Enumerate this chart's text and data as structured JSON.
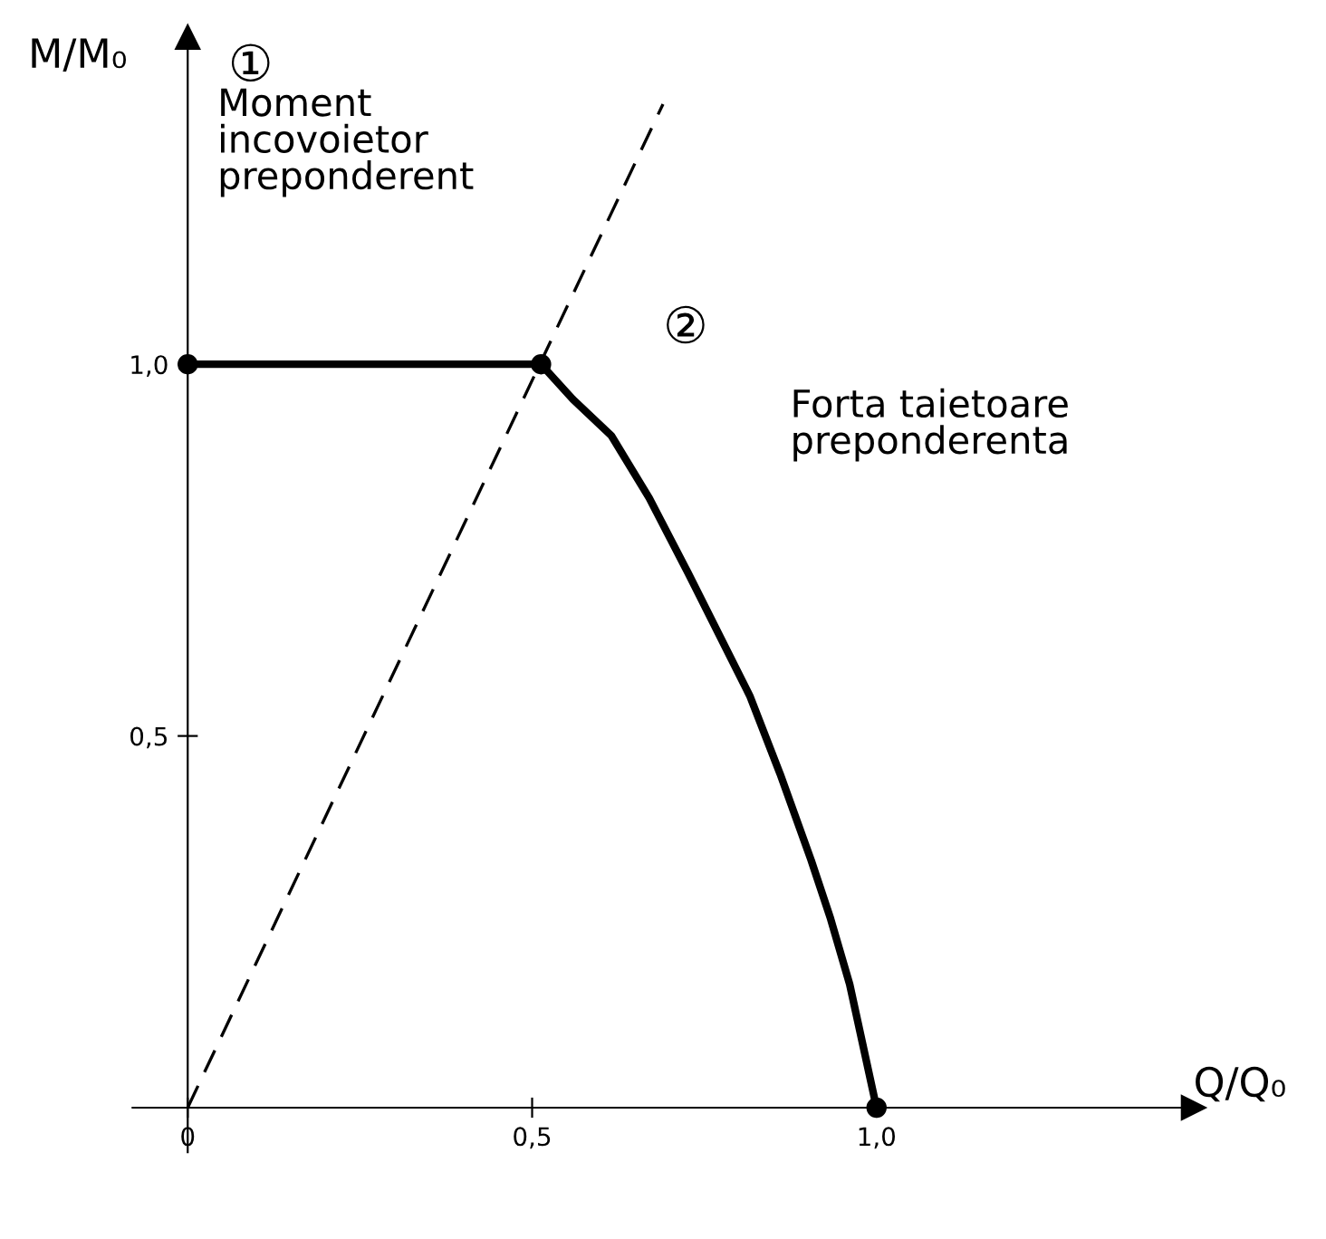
{
  "chart_data": {
    "type": "line",
    "xlabel": "Q/Q₀",
    "ylabel": "M/M₀",
    "series": [
      {
        "color": "#000000",
        "line_style": "solid",
        "x": [
          0,
          0.513,
          0.559,
          0.615,
          0.67,
          0.726,
          0.816,
          0.86,
          0.905,
          0.933,
          0.961,
          1.0
        ],
        "values": [
          1.0,
          1.0,
          0.953,
          0.904,
          0.82,
          0.72,
          0.554,
          0.449,
          0.333,
          0.255,
          0.166,
          0
        ]
      },
      {
        "type": "line",
        "color": "#000000",
        "line_style": "dashed",
        "x": [
          0,
          0.69
        ],
        "values": [
          0,
          1.35
        ]
      },
      {
        "type": "scatter",
        "color": "#000000",
        "marker": "circle",
        "x": [
          0,
          0.513,
          1.0
        ],
        "values": [
          1.0,
          1.0,
          0
        ]
      }
    ],
    "annotations": [
      "①",
      "Moment\nincovoietor\npreponderent",
      "②",
      "Forta taietoare\npreponderenta"
    ],
    "xlim": [
      -0.08,
      1.46
    ],
    "ylim": [
      -0.06,
      1.44
    ],
    "xticks": [
      {
        "value": 0,
        "label": "0"
      },
      {
        "value": 0.5,
        "label": "0,5"
      },
      {
        "value": 1.0,
        "label": "1,0"
      }
    ],
    "yticks": [
      {
        "value": 0.5,
        "label": "0,5"
      },
      {
        "value": 1.0,
        "label": "1,0"
      }
    ],
    "grid": false,
    "legend": false
  }
}
